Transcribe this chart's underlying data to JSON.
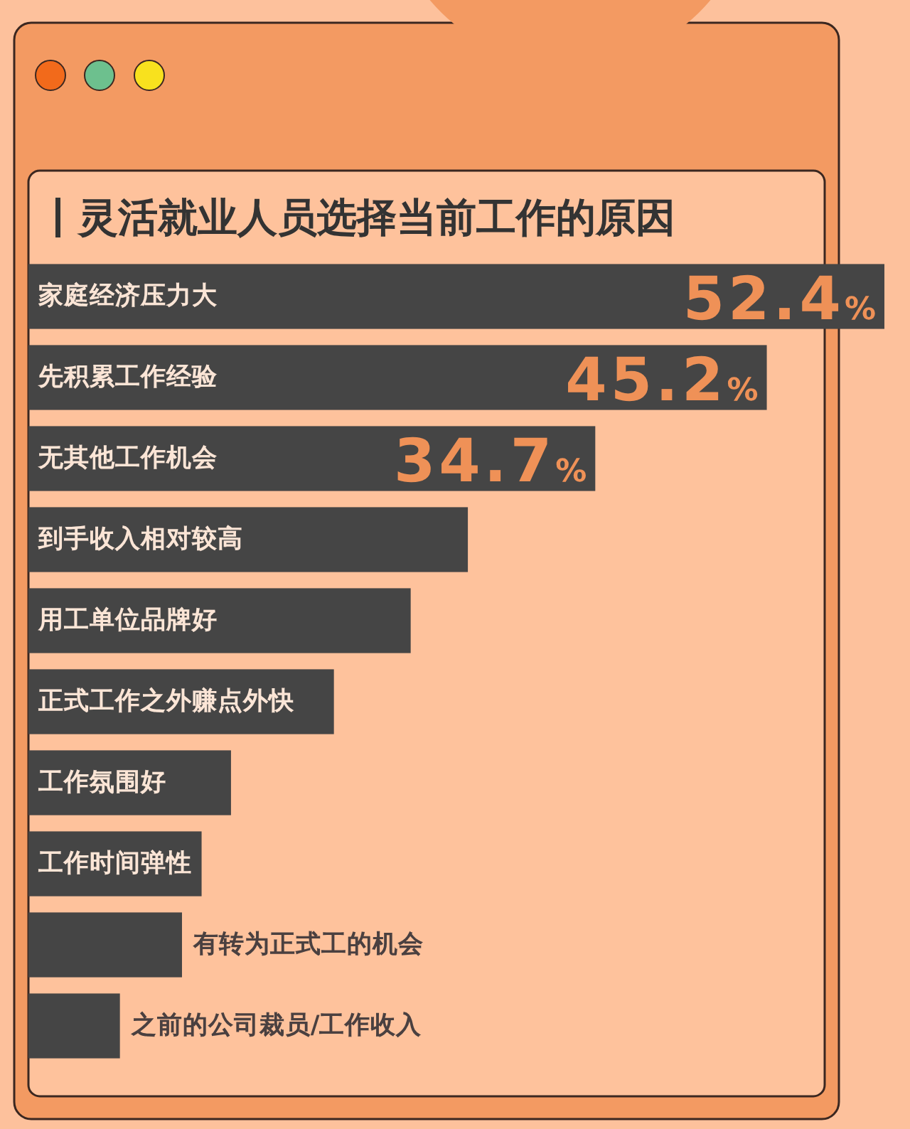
{
  "chart_data": {
    "type": "bar",
    "orientation": "horizontal",
    "title": "灵活就业人员选择当前工作的原因",
    "categories": [
      "家庭经济压力大",
      "先积累工作经验",
      "无其他工作机会",
      "到手收入相对较高",
      "用工单位品牌好",
      "正式工作之外赚点外快",
      "工作氛围好",
      "工作时间弹性",
      "有转为正式工的机会",
      "之前的公司裁员/工作收入"
    ],
    "values": [
      52.4,
      45.2,
      34.7,
      26.9,
      23.4,
      18.7,
      12.4,
      10.6,
      9.4,
      5.6
    ],
    "value_labels": [
      "52.4%",
      "45.2%",
      "34.7%",
      null,
      null,
      null,
      null,
      null,
      null,
      null
    ],
    "color": "#454545"
  }
}
